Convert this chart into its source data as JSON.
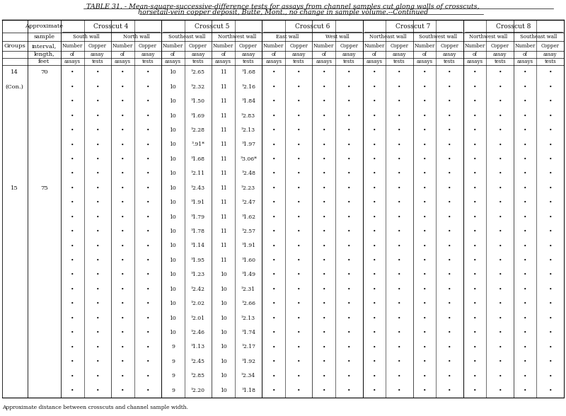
{
  "title1": "TABLE 31. - Mean-square-successive-difference tests for assays from channel samples cut along walls of crosscuts,",
  "title2": "horsetail-vein copper deposit, Butte, Mont., no change in sample volume.--Continued",
  "bg_color": "#ffffff",
  "text_color": "#111111",
  "footnote": "Approximate distance between crosscuts and channel sample width.",
  "data_rows": [
    [
      "14",
      "70",
      "•",
      "•",
      "•",
      "•",
      "10",
      "³2.65",
      "11",
      "³1.68",
      "•",
      "•",
      "•",
      "•",
      "•",
      "•",
      "•",
      "•",
      "•",
      "•",
      "•",
      "•"
    ],
    [
      "(Con.)",
      "",
      "•",
      "•",
      "•",
      "•",
      "10",
      "³2.32",
      "11",
      "³2.16",
      "•",
      "•",
      "•",
      "•",
      "•",
      "•",
      "•",
      "•",
      "•",
      "•",
      "•",
      "•"
    ],
    [
      "",
      "",
      "•",
      "•",
      "•",
      "•",
      "10",
      "³1.50",
      "11",
      "³1.84",
      "•",
      "•",
      "•",
      "•",
      "•",
      "•",
      "•",
      "•",
      "•",
      "•",
      "•",
      "•"
    ],
    [
      "",
      "",
      "•",
      "•",
      "•",
      "•",
      "10",
      "³1.69",
      "11",
      "³2.83",
      "•",
      "•",
      "•",
      "•",
      "•",
      "•",
      "•",
      "•",
      "•",
      "•",
      "•",
      "•"
    ],
    [
      "",
      "",
      "•",
      "•",
      "•",
      "•",
      "10",
      "³2.28",
      "11",
      "³2.13",
      "•",
      "•",
      "•",
      "•",
      "•",
      "•",
      "•",
      "•",
      "•",
      "•",
      "•",
      "•"
    ],
    [
      "",
      "",
      "•",
      "•",
      "•",
      "•",
      "10",
      "³.91*",
      "11",
      "³1.97",
      "•",
      "•",
      "•",
      "•",
      "•",
      "•",
      "•",
      "•",
      "•",
      "•",
      "•",
      "•"
    ],
    [
      "",
      "",
      "•",
      "•",
      "•",
      "•",
      "10",
      "³1.68",
      "11",
      "³3.06*",
      "•",
      "•",
      "•",
      "•",
      "•",
      "•",
      "•",
      "•",
      "•",
      "•",
      "•",
      "•"
    ],
    [
      "",
      "",
      "•",
      "•",
      "•",
      "•",
      "10",
      "³2.11",
      "11",
      "³2.48",
      "•",
      "•",
      "•",
      "•",
      "•",
      "•",
      "•",
      "•",
      "•",
      "•",
      "•",
      "•"
    ],
    [
      "15",
      "75",
      "•",
      "•",
      "•",
      "•",
      "10",
      "³2.43",
      "11",
      "³2.23",
      "•",
      "•",
      "•",
      "•",
      "•",
      "•",
      "•",
      "•",
      "•",
      "•",
      "•",
      "•"
    ],
    [
      "",
      "",
      "•",
      "•",
      "•",
      "•",
      "10",
      "³1.91",
      "11",
      "³2.47",
      "•",
      "•",
      "•",
      "•",
      "•",
      "•",
      "•",
      "•",
      "•",
      "•",
      "•",
      "•"
    ],
    [
      "",
      "",
      "•",
      "•",
      "•",
      "•",
      "10",
      "³1.79",
      "11",
      "³1.62",
      "•",
      "•",
      "•",
      "•",
      "•",
      "•",
      "•",
      "•",
      "•",
      "•",
      "•",
      "•"
    ],
    [
      "",
      "",
      "•",
      "•",
      "•",
      "•",
      "10",
      "³1.78",
      "11",
      "³2.57",
      "•",
      "•",
      "•",
      "•",
      "•",
      "•",
      "•",
      "•",
      "•",
      "•",
      "•",
      "•"
    ],
    [
      "",
      "",
      "•",
      "•",
      "•",
      "•",
      "10",
      "³1.14",
      "11",
      "³1.91",
      "•",
      "•",
      "•",
      "•",
      "•",
      "•",
      "•",
      "•",
      "•",
      "•",
      "•",
      "•"
    ],
    [
      "",
      "",
      "•",
      "•",
      "•",
      "•",
      "10",
      "³1.95",
      "11",
      "³1.60",
      "•",
      "•",
      "•",
      "•",
      "•",
      "•",
      "•",
      "•",
      "•",
      "•",
      "•",
      "•"
    ],
    [
      "",
      "",
      "•",
      "•",
      "•",
      "•",
      "10",
      "³1.23",
      "10",
      "³1.49",
      "•",
      "•",
      "•",
      "•",
      "•",
      "•",
      "•",
      "•",
      "•",
      "•",
      "•",
      "•"
    ],
    [
      "",
      "",
      "•",
      "•",
      "•",
      "•",
      "10",
      "³2.42",
      "10",
      "³2.31",
      "•",
      "•",
      "•",
      "•",
      "•",
      "•",
      "•",
      "•",
      "•",
      "•",
      "•",
      "•"
    ],
    [
      "",
      "",
      "•",
      "•",
      "•",
      "•",
      "10",
      "³2.02",
      "10",
      "³2.66",
      "•",
      "•",
      "•",
      "•",
      "•",
      "•",
      "•",
      "•",
      "•",
      "•",
      "•",
      "•"
    ],
    [
      "",
      "",
      "•",
      "•",
      "•",
      "•",
      "10",
      "³2.01",
      "10",
      "³2.13",
      "•",
      "•",
      "•",
      "•",
      "•",
      "•",
      "•",
      "•",
      "•",
      "•",
      "•",
      "•"
    ],
    [
      "",
      "",
      "•",
      "•",
      "•",
      "•",
      "10",
      "³2.46",
      "10",
      "³1.74",
      "•",
      "•",
      "•",
      "•",
      "•",
      "•",
      "•",
      "•",
      "•",
      "•",
      "•",
      "•"
    ],
    [
      "",
      "",
      "•",
      "•",
      "•",
      "•",
      "9",
      "³1.13",
      "10",
      "³2.17",
      "•",
      "•",
      "•",
      "•",
      "•",
      "•",
      "•",
      "•",
      "•",
      "•",
      "•",
      "•"
    ],
    [
      "",
      "",
      "•",
      "•",
      "•",
      "•",
      "9",
      "³2.45",
      "10",
      "³1.92",
      "•",
      "•",
      "•",
      "•",
      "•",
      "•",
      "•",
      "•",
      "•",
      "•",
      "•",
      "•"
    ],
    [
      "",
      "",
      "•",
      "•",
      "•",
      "•",
      "9",
      "³2.85",
      "10",
      "³2.34",
      "•",
      "•",
      "•",
      "•",
      "•",
      "•",
      "•",
      "•",
      "•",
      "•",
      "•",
      "•"
    ],
    [
      "",
      "",
      "•",
      "•",
      "•",
      "•",
      "9",
      "³2.20",
      "10",
      "³1.18",
      "•",
      "•",
      "•",
      "•",
      "•",
      "•",
      "•",
      "•",
      "•",
      "•",
      "•",
      "•"
    ]
  ]
}
